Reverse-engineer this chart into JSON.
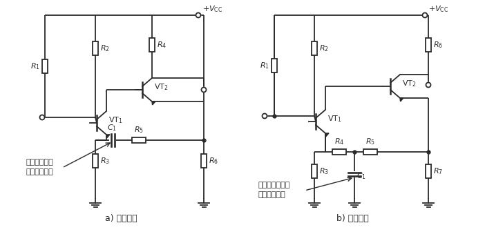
{
  "bg_color": "#ffffff",
  "line_color": "#2a2a2a",
  "lw": 1.3,
  "label_a": "a) 交流反饋",
  "label_b": "b) 直流反饋",
  "annotation_a_line1": "直流反饋信號",
  "annotation_a_line2": "無法通過電容",
  "annotation_b_line1": "電容將交流反饋",
  "annotation_b_line2": "信號旁路到地",
  "figw": 7.02,
  "figh": 3.65,
  "dpi": 100
}
